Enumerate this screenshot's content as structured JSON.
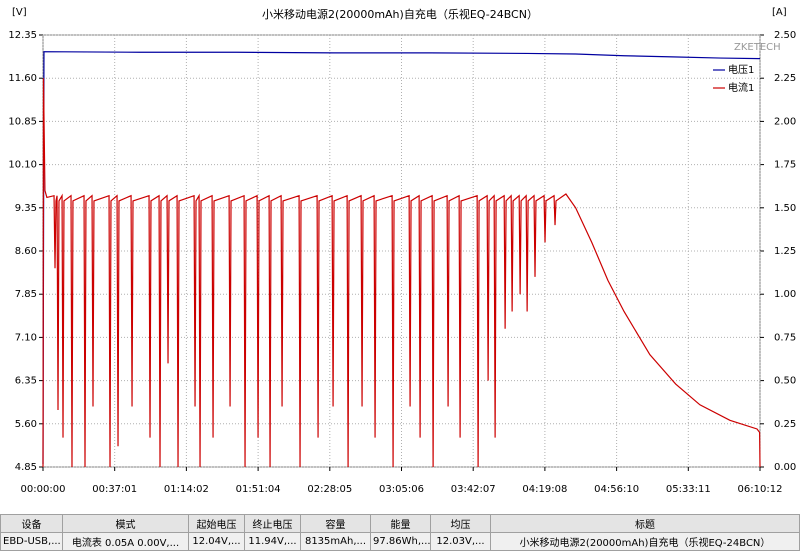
{
  "chart_data": {
    "type": "line",
    "title": "小米移动电源2(20000mAh)自充电（乐视EQ-24BCN）",
    "y_label": "[V]",
    "y2_label": "[A]",
    "watermark": "ZKETECH",
    "grid": true,
    "legend": "upper right",
    "xlim": [
      0,
      22212
    ],
    "xticks": [
      {
        "value": 0,
        "label": "00:00:00"
      },
      {
        "value": 2221,
        "label": "00:37:01"
      },
      {
        "value": 4442,
        "label": "01:14:02"
      },
      {
        "value": 6664,
        "label": "01:51:04"
      },
      {
        "value": 8885,
        "label": "02:28:05"
      },
      {
        "value": 11106,
        "label": "03:05:06"
      },
      {
        "value": 13327,
        "label": "03:42:07"
      },
      {
        "value": 15548,
        "label": "04:19:08"
      },
      {
        "value": 17770,
        "label": "04:56:10"
      },
      {
        "value": 19991,
        "label": "05:33:11"
      },
      {
        "value": 22212,
        "label": "06:10:12"
      }
    ],
    "ylim": [
      4.85,
      12.35
    ],
    "yticks": [
      4.85,
      {
        "value": 5.6,
        "label": "5.60"
      },
      6.35,
      {
        "value": 7.1,
        "label": "7.10"
      },
      7.85,
      {
        "value": 8.6,
        "label": "8.60"
      },
      9.35,
      {
        "value": 10.1,
        "label": "10.10"
      },
      10.85,
      {
        "value": 11.6,
        "label": "11.60"
      },
      12.35
    ],
    "y2lim": [
      0,
      2.5
    ],
    "y2ticks": [
      {
        "value": 0,
        "label": "0.00"
      },
      0.25,
      {
        "value": 0.5,
        "label": "0.50"
      },
      0.75,
      {
        "value": 1,
        "label": "1.00"
      },
      1.25,
      {
        "value": 1.5,
        "label": "1.50"
      },
      1.75,
      {
        "value": 2,
        "label": "2.00"
      },
      2.25,
      {
        "value": 2.5,
        "label": "2.50"
      }
    ],
    "series": [
      {
        "name": "电压1",
        "color": "#0000a0",
        "x": [
          0,
          30,
          3000,
          6000,
          9000,
          12000,
          15000,
          16500,
          18000,
          19500,
          21000,
          22212
        ],
        "values": [
          4.9,
          12.06,
          12.05,
          12.05,
          12.04,
          12.04,
          12.03,
          12.02,
          11.99,
          11.97,
          11.95,
          11.94
        ]
      },
      {
        "name": "电流1",
        "color": "#cc0000",
        "axis": "y2",
        "x": [
          0,
          15,
          60,
          120,
          342,
          372,
          402,
          435,
          465,
          495,
          590,
          620,
          650,
          868,
          898,
          928,
          1271,
          1301,
          1331,
          1519,
          1549,
          1579,
          2046,
          2076,
          2106,
          2294,
          2324,
          2354,
          2728,
          2758,
          2788,
          3285,
          3315,
          3345,
          3595,
          3625,
          3655,
          3843,
          3873,
          3903,
          4153,
          4183,
          4213,
          4680,
          4710,
          4740,
          4835,
          4865,
          4895,
          5238,
          5268,
          5298,
          5765,
          5795,
          5825,
          6229,
          6259,
          6289,
          6632,
          6662,
          6692,
          7004,
          7034,
          7064,
          7376,
          7406,
          7436,
          7933,
          7963,
          7993,
          8491,
          8521,
          8551,
          8956,
          8986,
          9016,
          9421,
          9451,
          9481,
          9854,
          9884,
          9914,
          10257,
          10287,
          10317,
          10815,
          10845,
          10875,
          11342,
          11372,
          11402,
          11652,
          11682,
          11712,
          12055,
          12085,
          12115,
          12519,
          12549,
          12579,
          12891,
          12921,
          12951,
          13449,
          13479,
          13509,
          13759,
          13789,
          13819,
          13976,
          14006,
          14036,
          14286,
          14316,
          14346,
          14503,
          14533,
          14563,
          14751,
          14781,
          14811,
          14968,
          14998,
          15028,
          15212,
          15242,
          15272,
          15522,
          15552,
          15582,
          15832,
          15862,
          15892,
          16200,
          16500,
          17000,
          17500,
          18000,
          18800,
          19600,
          20350,
          21280,
          22120,
          22200,
          22212
        ],
        "values": [
          0,
          2.25,
          1.6,
          1.56,
          1.57,
          1.15,
          1.54,
          1.57,
          0.33,
          1.54,
          1.57,
          0.17,
          1.54,
          1.57,
          0,
          1.54,
          1.57,
          0,
          1.54,
          1.57,
          0.35,
          1.54,
          1.57,
          0,
          1.54,
          1.57,
          0.12,
          1.54,
          1.57,
          0.35,
          1.54,
          1.57,
          0.17,
          1.54,
          1.57,
          0,
          1.54,
          1.57,
          0.6,
          1.54,
          1.57,
          0,
          1.54,
          1.57,
          0.35,
          1.54,
          1.57,
          0,
          1.54,
          1.57,
          0.17,
          1.54,
          1.57,
          0.35,
          1.54,
          1.57,
          0,
          1.54,
          1.57,
          0.17,
          1.54,
          1.57,
          0,
          1.54,
          1.57,
          0.35,
          1.54,
          1.57,
          0,
          1.54,
          1.57,
          0.17,
          1.54,
          1.57,
          0.35,
          1.54,
          1.57,
          0,
          1.54,
          1.57,
          0.35,
          1.54,
          1.57,
          0.17,
          1.54,
          1.57,
          0,
          1.54,
          1.57,
          0.35,
          1.54,
          1.57,
          0.17,
          1.54,
          1.57,
          0,
          1.54,
          1.57,
          0.35,
          1.54,
          1.57,
          0.17,
          1.54,
          1.57,
          0,
          1.54,
          1.57,
          0.5,
          1.54,
          1.57,
          0.17,
          1.54,
          1.57,
          0.8,
          1.54,
          1.57,
          0.9,
          1.54,
          1.57,
          1.0,
          1.54,
          1.57,
          0.9,
          1.54,
          1.57,
          1.1,
          1.54,
          1.57,
          1.3,
          1.54,
          1.57,
          1.4,
          1.54,
          1.58,
          1.5,
          1.3,
          1.08,
          0.9,
          0.65,
          0.48,
          0.36,
          0.27,
          0.22,
          0.2,
          0
        ]
      }
    ]
  },
  "table": {
    "headers": [
      "设备",
      "模式",
      "起始电压",
      "终止电压",
      "容量",
      "能量",
      "均压",
      "标题"
    ],
    "rows": [
      [
        "EBD-USB,...",
        "电流表 0.05A 0.00V,...",
        "12.04V,...",
        "11.94V,...",
        "8135mAh,...",
        "97.86Wh,...",
        "12.03V,...",
        "小米移动电源2(20000mAh)自充电（乐视EQ-24BCN）"
      ]
    ]
  }
}
